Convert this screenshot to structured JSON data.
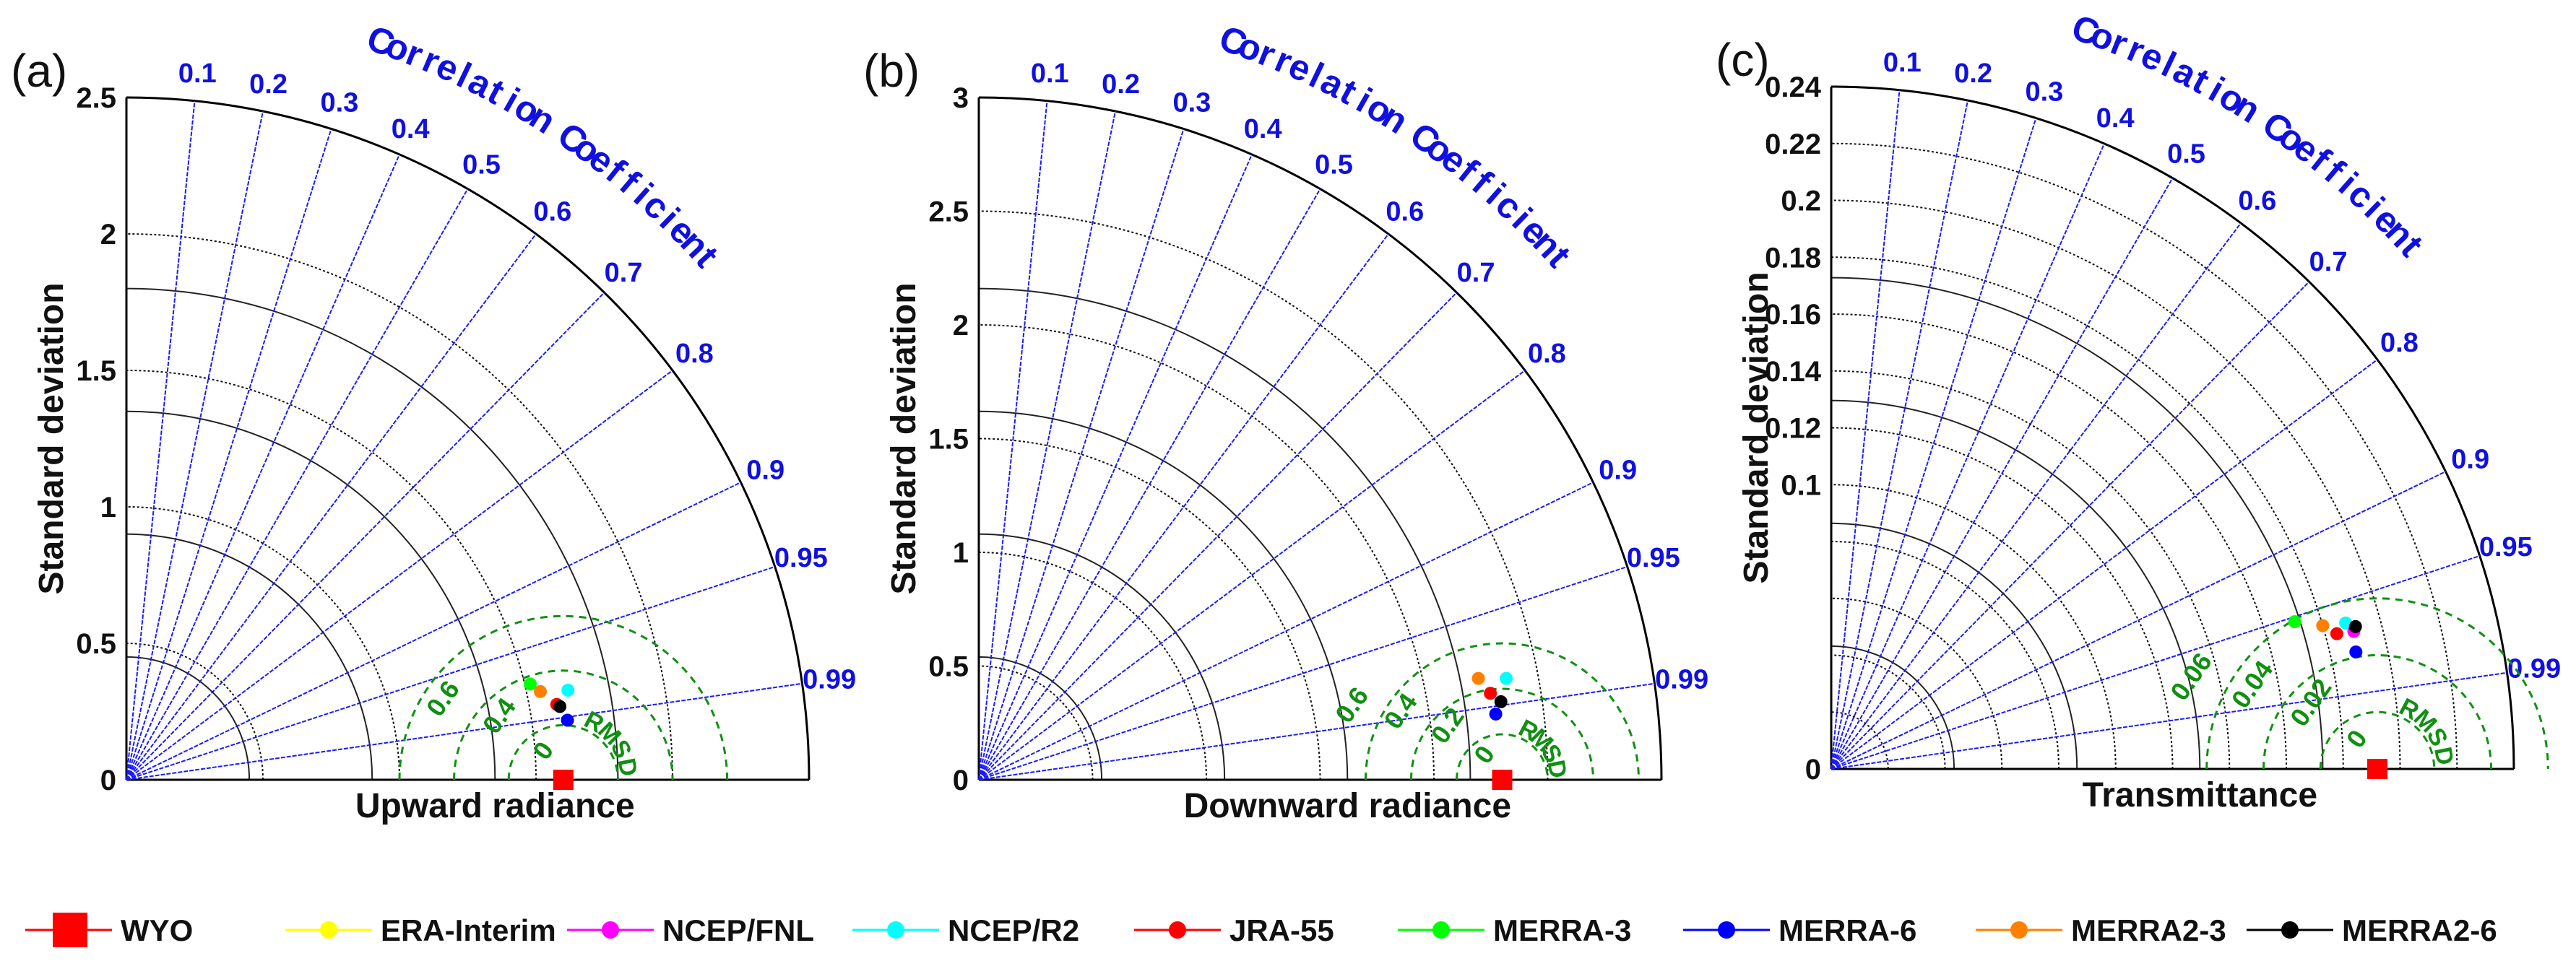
{
  "chart_data": [
    {
      "type": "taylor",
      "panel_label": "(a)",
      "xlabel": "Upward radiance",
      "ylabel": "Standard deviation",
      "corr_title": "Correlation Coefficient",
      "rmsd_title": "RMSD",
      "std_max": 2.5,
      "std_ticks": [
        0.5,
        1,
        1.5,
        2,
        2.5
      ],
      "std_tick_labels": [
        "0.5",
        "1",
        "1.5",
        "2",
        "2.5"
      ],
      "rmsd_levels": [
        0.2,
        0.4,
        0.6
      ],
      "rmsd_labels": [
        "0",
        "0.4",
        "0.6"
      ],
      "reference": {
        "name": "WYO",
        "std": 1.6
      },
      "points": [
        {
          "name": "NCEP/R2",
          "std": 1.65,
          "corr": 0.98
        },
        {
          "name": "MERRA-3",
          "std": 1.52,
          "corr": 0.973
        },
        {
          "name": "MERRA2-3",
          "std": 1.55,
          "corr": 0.978
        },
        {
          "name": "JRA-55",
          "std": 1.6,
          "corr": 0.985
        },
        {
          "name": "MERRA2-6",
          "std": 1.61,
          "corr": 0.986
        },
        {
          "name": "MERRA-6",
          "std": 1.63,
          "corr": 0.991
        }
      ]
    },
    {
      "type": "taylor",
      "panel_label": "(b)",
      "xlabel": "Downward radiance",
      "ylabel": "Standard deviation",
      "corr_title": "Correlation Coefficient",
      "rmsd_title": "RMSD",
      "std_max": 3,
      "std_ticks": [
        0.5,
        1,
        1.5,
        2,
        2.5,
        3
      ],
      "std_tick_labels": [
        "0.5",
        "1",
        "1.5",
        "2",
        "2.5",
        "3"
      ],
      "rmsd_levels": [
        0.2,
        0.4,
        0.6
      ],
      "rmsd_labels": [
        "0",
        "0.2",
        "0.4",
        "0.6"
      ],
      "reference": {
        "name": "WYO",
        "std": 2.3
      },
      "points": [
        {
          "name": "MERRA2-3",
          "std": 2.24,
          "corr": 0.98
        },
        {
          "name": "NCEP/R2",
          "std": 2.36,
          "corr": 0.982
        },
        {
          "name": "JRA-55",
          "std": 2.28,
          "corr": 0.986
        },
        {
          "name": "MERRA2-6",
          "std": 2.32,
          "corr": 0.989
        },
        {
          "name": "MERRA-6",
          "std": 2.29,
          "corr": 0.992
        }
      ]
    },
    {
      "type": "taylor",
      "panel_label": "(c)",
      "xlabel": "Transmittance",
      "ylabel": "Standard deviation",
      "corr_title": "Correlation Coefficient",
      "rmsd_title": "RMSD",
      "std_max": 0.24,
      "std_ticks": [
        0.1,
        0.12,
        0.14,
        0.16,
        0.18,
        0.2,
        0.22,
        0.24
      ],
      "std_tick_labels": [
        "0.1",
        "0.12",
        "0.14",
        "0.16",
        "0.18",
        "0.2",
        "0.22",
        "0.24"
      ],
      "std_extra_rings": [
        0.02,
        0.04,
        0.06,
        0.08
      ],
      "rmsd_levels": [
        0.02,
        0.04,
        0.06
      ],
      "rmsd_labels": [
        "0",
        "0.02",
        "0.04",
        "0.06"
      ],
      "reference": {
        "name": "WYO",
        "std": 0.192
      },
      "points": [
        {
          "name": "MERRA-3",
          "std": 0.171,
          "corr": 0.953
        },
        {
          "name": "MERRA2-3",
          "std": 0.18,
          "corr": 0.96
        },
        {
          "name": "NCEP/R2",
          "std": 0.188,
          "corr": 0.962
        },
        {
          "name": "JRA-55",
          "std": 0.184,
          "corr": 0.966
        },
        {
          "name": "NCEP/FNL",
          "std": 0.19,
          "corr": 0.967
        },
        {
          "name": "MERRA2-6",
          "std": 0.191,
          "corr": 0.965
        },
        {
          "name": "MERRA-6",
          "std": 0.189,
          "corr": 0.976
        }
      ]
    }
  ],
  "corr_ticks": [
    0.1,
    0.2,
    0.3,
    0.4,
    0.5,
    0.6,
    0.7,
    0.8,
    0.9,
    0.95,
    0.99
  ],
  "corr_tick_labels": [
    "0.1",
    "0.2",
    "0.3",
    "0.4",
    "0.5",
    "0.6",
    "0.7",
    "0.8",
    "0.9",
    "0.95",
    "0.99"
  ],
  "origin_label": "0",
  "legend": [
    {
      "name": "WYO",
      "color": "#ff0000",
      "marker": "square"
    },
    {
      "name": "ERA-Interim",
      "color": "#ffff00",
      "marker": "circle"
    },
    {
      "name": "NCEP/FNL",
      "color": "#ff00ff",
      "marker": "circle"
    },
    {
      "name": "NCEP/R2",
      "color": "#00ffff",
      "marker": "circle"
    },
    {
      "name": "JRA-55",
      "color": "#ff0000",
      "marker": "circle"
    },
    {
      "name": "MERRA-3",
      "color": "#00ff00",
      "marker": "circle"
    },
    {
      "name": "MERRA-6",
      "color": "#0000ff",
      "marker": "circle"
    },
    {
      "name": "MERRA2-3",
      "color": "#ff8000",
      "marker": "circle"
    },
    {
      "name": "MERRA2-6",
      "color": "#000000",
      "marker": "circle"
    }
  ],
  "colors": {
    "corr_lines": "#1a1aff",
    "grid": "#000000",
    "rmsd": "#109010",
    "axis": "#000000"
  }
}
